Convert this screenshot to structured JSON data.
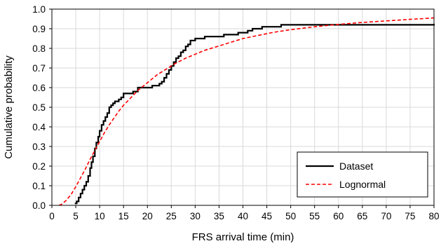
{
  "chart_data": {
    "type": "line",
    "xlabel": "FRS arrival time (min)",
    "ylabel": "Cumulative probability",
    "xlim": [
      0,
      80
    ],
    "ylim": [
      0,
      1.0
    ],
    "xticks": [
      0,
      5,
      10,
      15,
      20,
      25,
      30,
      35,
      40,
      45,
      50,
      55,
      60,
      65,
      70,
      75,
      80
    ],
    "yticks": [
      "0.0",
      "0.1",
      "0.2",
      "0.3",
      "0.4",
      "0.5",
      "0.6",
      "0.7",
      "0.8",
      "0.9",
      "1.0"
    ],
    "grid": true,
    "legend_position": "bottom-right",
    "series": [
      {
        "name": "Dataset",
        "style": "solid",
        "color": "#000000",
        "step": true,
        "x": [
          4.8,
          5.2,
          5.6,
          6.0,
          6.4,
          6.8,
          7.2,
          7.6,
          8.0,
          8.3,
          8.6,
          9.0,
          9.3,
          9.7,
          10.0,
          10.4,
          10.8,
          11.2,
          11.6,
          12.0,
          12.4,
          12.8,
          13.2,
          13.6,
          14.0,
          14.5,
          15.0,
          16.0,
          17.0,
          18.0,
          19.0,
          20.0,
          21.0,
          22.0,
          22.5,
          23.0,
          23.5,
          24.0,
          24.5,
          25.0,
          25.5,
          26.0,
          26.5,
          27.0,
          27.5,
          28.0,
          28.5,
          29.0,
          30.0,
          31.0,
          32.0,
          34.0,
          36.0,
          38.0,
          39.0,
          40.0,
          41.0,
          42.0,
          43.0,
          44.0,
          45.0,
          46.0,
          48.0,
          50.0,
          55.0,
          60.0,
          65.0,
          70.0,
          75.0,
          80.0
        ],
        "y": [
          0.01,
          0.02,
          0.04,
          0.06,
          0.08,
          0.1,
          0.12,
          0.15,
          0.19,
          0.22,
          0.25,
          0.29,
          0.32,
          0.35,
          0.38,
          0.41,
          0.43,
          0.45,
          0.47,
          0.5,
          0.51,
          0.52,
          0.53,
          0.53,
          0.54,
          0.55,
          0.57,
          0.57,
          0.58,
          0.6,
          0.6,
          0.6,
          0.61,
          0.61,
          0.62,
          0.63,
          0.65,
          0.67,
          0.69,
          0.71,
          0.73,
          0.75,
          0.76,
          0.78,
          0.79,
          0.81,
          0.82,
          0.84,
          0.85,
          0.85,
          0.86,
          0.86,
          0.87,
          0.87,
          0.88,
          0.88,
          0.89,
          0.9,
          0.9,
          0.91,
          0.91,
          0.91,
          0.92,
          0.92,
          0.92,
          0.92,
          0.92,
          0.92,
          0.92,
          0.925
        ]
      },
      {
        "name": "Lognormal",
        "style": "dashed",
        "color": "#ff0000",
        "step": false,
        "x": [
          1.5,
          2,
          3,
          4,
          5,
          6,
          7,
          8,
          9,
          10,
          11,
          12,
          13,
          14,
          15,
          16,
          17,
          18,
          19,
          20,
          22,
          24,
          26,
          28,
          30,
          32,
          34,
          36,
          38,
          40,
          42,
          44,
          46,
          48,
          50,
          55,
          60,
          65,
          70,
          75,
          80
        ],
        "y": [
          0.0,
          0.005,
          0.025,
          0.055,
          0.095,
          0.14,
          0.185,
          0.235,
          0.28,
          0.325,
          0.37,
          0.41,
          0.445,
          0.48,
          0.51,
          0.535,
          0.56,
          0.585,
          0.605,
          0.625,
          0.665,
          0.695,
          0.725,
          0.75,
          0.77,
          0.79,
          0.805,
          0.82,
          0.835,
          0.85,
          0.86,
          0.87,
          0.88,
          0.888,
          0.895,
          0.91,
          0.922,
          0.932,
          0.94,
          0.948,
          0.955
        ]
      }
    ]
  }
}
